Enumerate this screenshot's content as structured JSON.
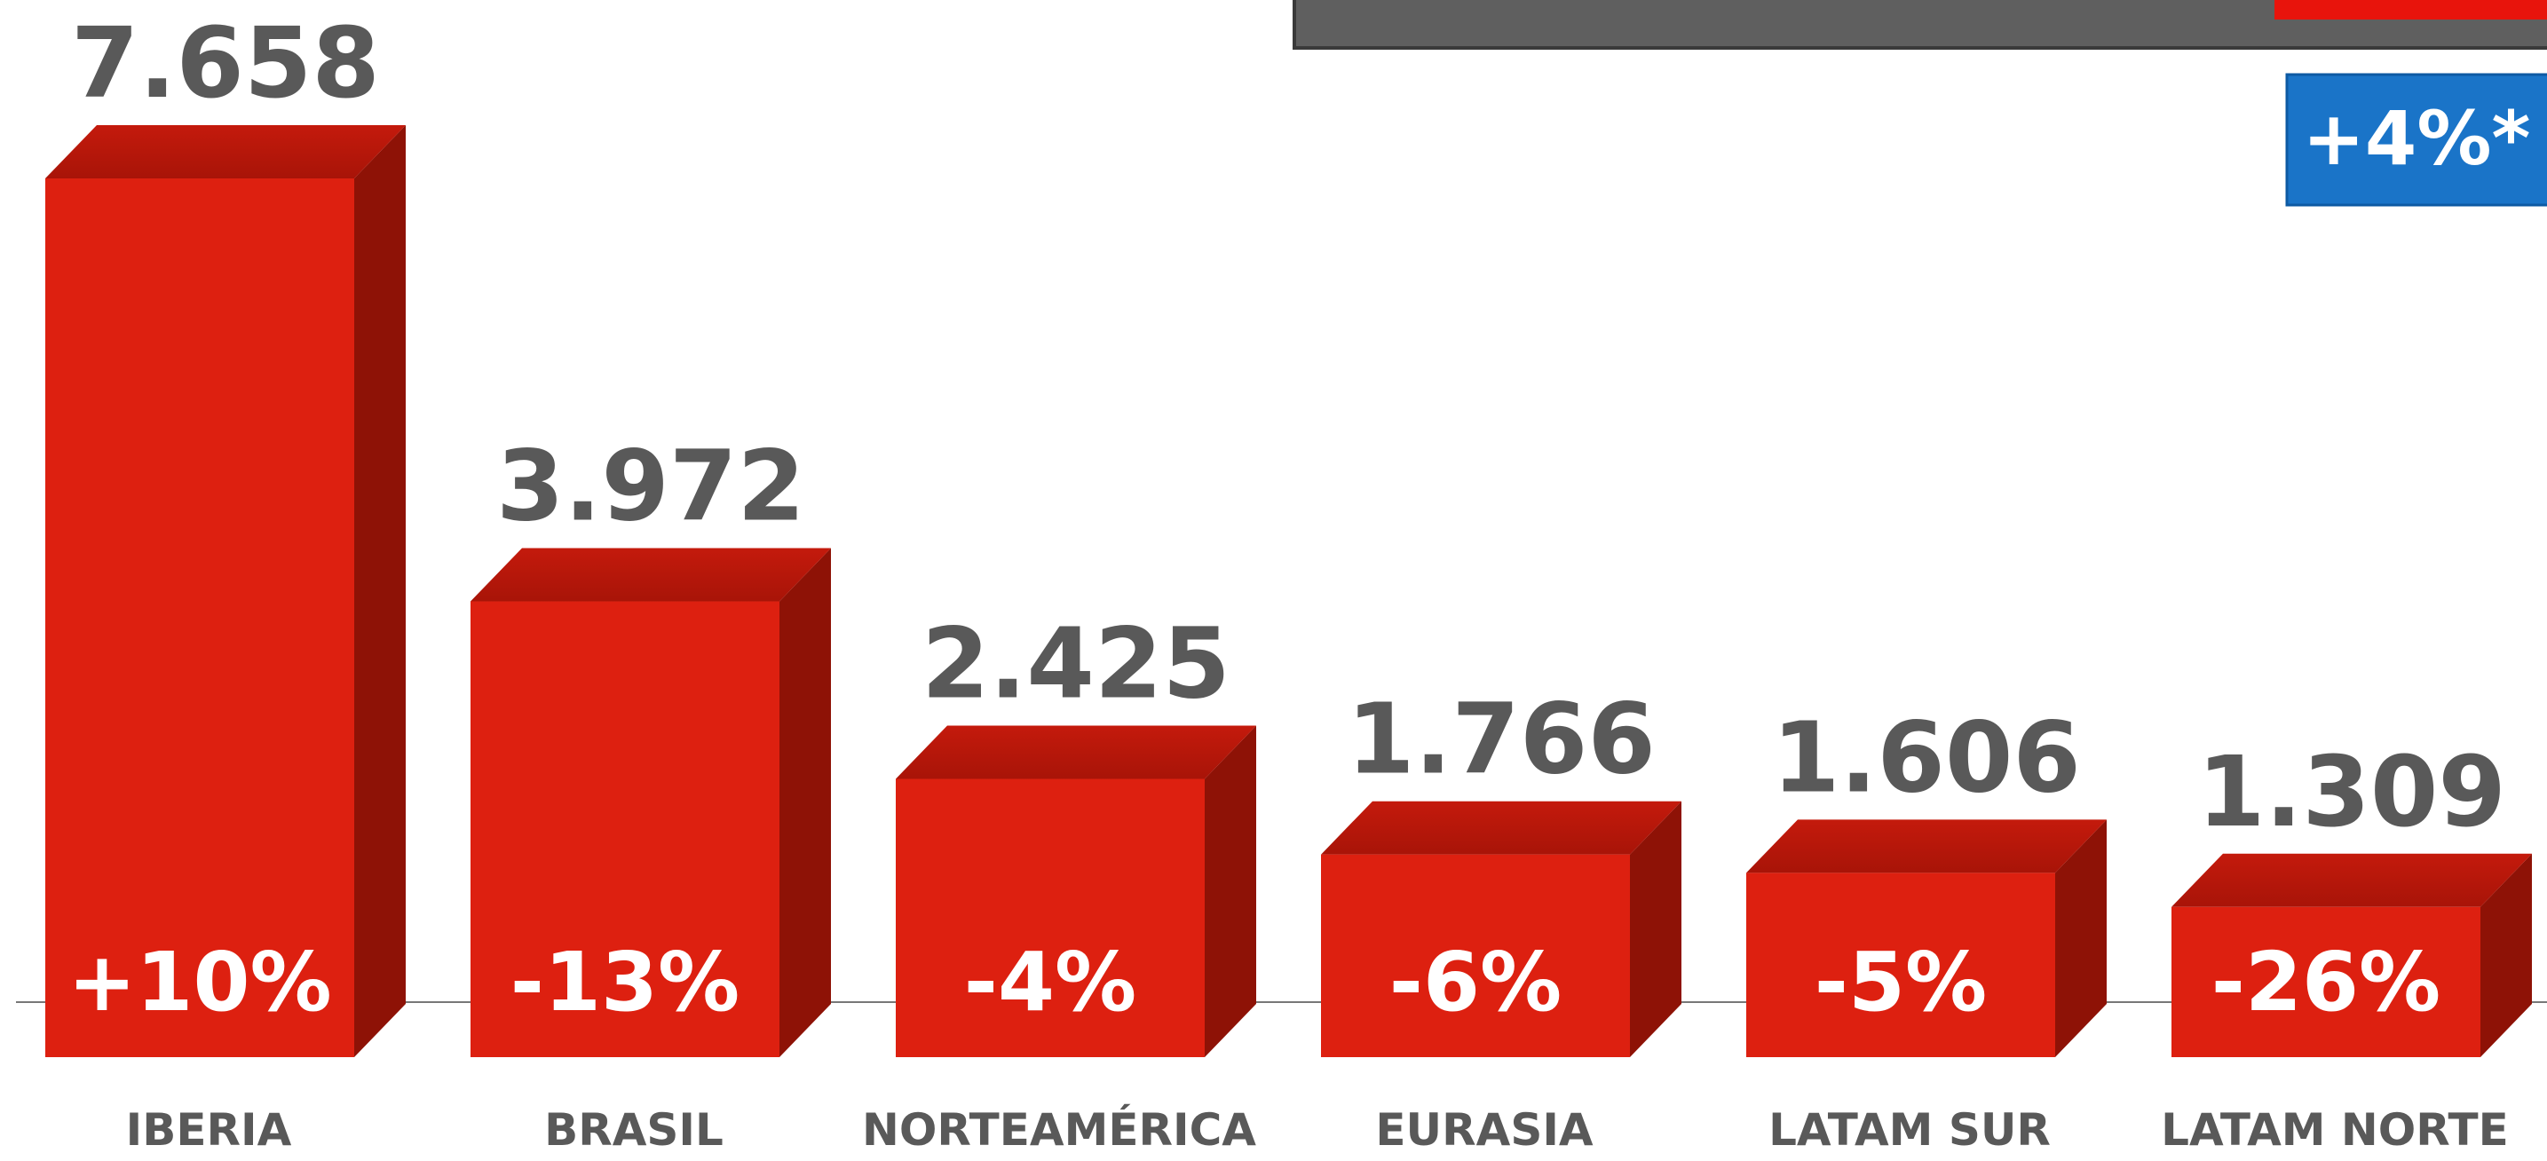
{
  "chart_data": {
    "type": "bar3d",
    "categories": [
      "IBERIA",
      "BRASIL",
      "NORTEAMÉRICA",
      "EURASIA",
      "LATAM SUR",
      "LATAM NORTE"
    ],
    "values": [
      7658,
      3972,
      2425,
      1766,
      1606,
      1309
    ],
    "value_labels": [
      "7.658",
      "3.972",
      "2.425",
      "1.766",
      "1.606",
      "1.309"
    ],
    "change_labels": [
      "+10%",
      "-13%",
      "-4%",
      "-6%",
      "-5%",
      "-26%"
    ],
    "color": "#dd2010",
    "annotation": "+4%*"
  }
}
